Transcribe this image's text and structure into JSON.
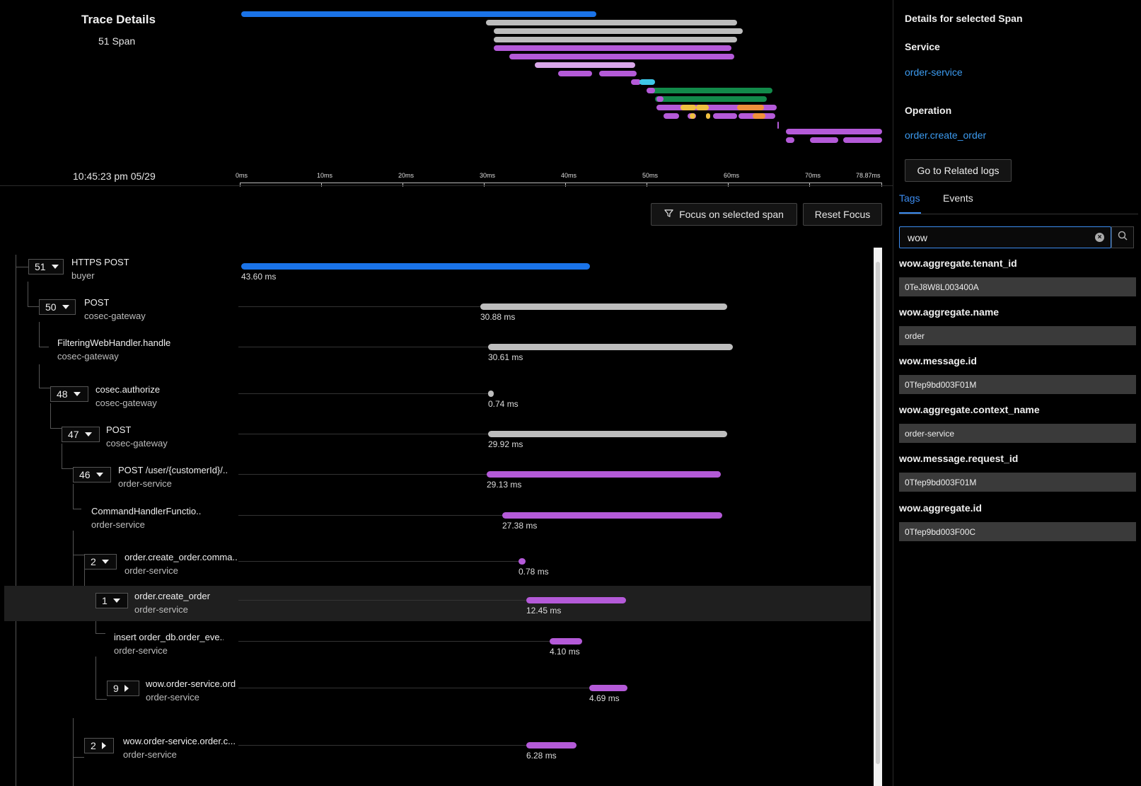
{
  "header": {
    "title": "Trace Details",
    "span_count": "51 Span",
    "timestamp": "10:45:23 pm 05/29",
    "axis_ticks": [
      "0ms",
      "10ms",
      "20ms",
      "30ms",
      "40ms",
      "50ms",
      "60ms",
      "70ms",
      "78.87ms"
    ]
  },
  "controls": {
    "focus_label": "Focus on selected span",
    "reset_label": "Reset Focus"
  },
  "colors": {
    "blue": "#1a73e8",
    "gray": "#bdbdbd",
    "purple": "#b45ad8",
    "lilac": "#d8a6e8",
    "cyan": "#3ec7e8",
    "green": "#128a4a",
    "yellow": "#f0c040",
    "orange": "#f0903c",
    "link": "#3c9bf0"
  },
  "spans": [
    {
      "count": "51",
      "op": "HTTPS POST",
      "service": "buyer",
      "duration": "43.60 ms"
    },
    {
      "count": "50",
      "op": "POST",
      "service": "cosec-gateway",
      "duration": "30.88 ms"
    },
    {
      "count": "",
      "op": "FilteringWebHandler.handle",
      "service": "cosec-gateway",
      "duration": "30.61 ms"
    },
    {
      "count": "48",
      "op": "cosec.authorize",
      "service": "cosec-gateway",
      "duration": "0.74 ms"
    },
    {
      "count": "47",
      "op": "POST",
      "service": "cosec-gateway",
      "duration": "29.92 ms"
    },
    {
      "count": "46",
      "op": "POST /user/{customerId}/...",
      "service": "order-service",
      "duration": "29.13 ms"
    },
    {
      "count": "",
      "op": "CommandHandlerFunctio...",
      "service": "order-service",
      "duration": "27.38 ms"
    },
    {
      "count": "2",
      "op": "order.create_order.comma...",
      "service": "order-service",
      "duration": "0.78 ms"
    },
    {
      "count": "1",
      "op": "order.create_order",
      "service": "order-service",
      "duration": "12.45 ms"
    },
    {
      "count": "",
      "op": "insert order_db.order_eve...",
      "service": "order-service",
      "duration": "4.10 ms"
    },
    {
      "count": "9",
      "op": "wow.order-service.ord",
      "service": "order-service",
      "duration": "4.69 ms"
    },
    {
      "count": "2",
      "op": "wow.order-service.order.c...",
      "service": "order-service",
      "duration": "6.28 ms"
    }
  ],
  "details": {
    "title": "Details for selected Span",
    "service_label": "Service",
    "service_value": "order-service",
    "operation_label": "Operation",
    "operation_value": "order.create_order",
    "related_logs": "Go to Related logs",
    "tabs": [
      "Tags",
      "Events"
    ],
    "search_value": "wow",
    "tags": [
      {
        "key": "wow.aggregate.tenant_id",
        "value": "0TeJ8W8L003400A"
      },
      {
        "key": "wow.aggregate.name",
        "value": "order"
      },
      {
        "key": "wow.message.id",
        "value": "0Tfep9bd003F01M"
      },
      {
        "key": "wow.aggregate.context_name",
        "value": "order-service"
      },
      {
        "key": "wow.message.request_id",
        "value": "0Tfep9bd003F01M"
      },
      {
        "key": "wow.aggregate.id",
        "value": "0Tfep9bd003F00C"
      }
    ]
  }
}
